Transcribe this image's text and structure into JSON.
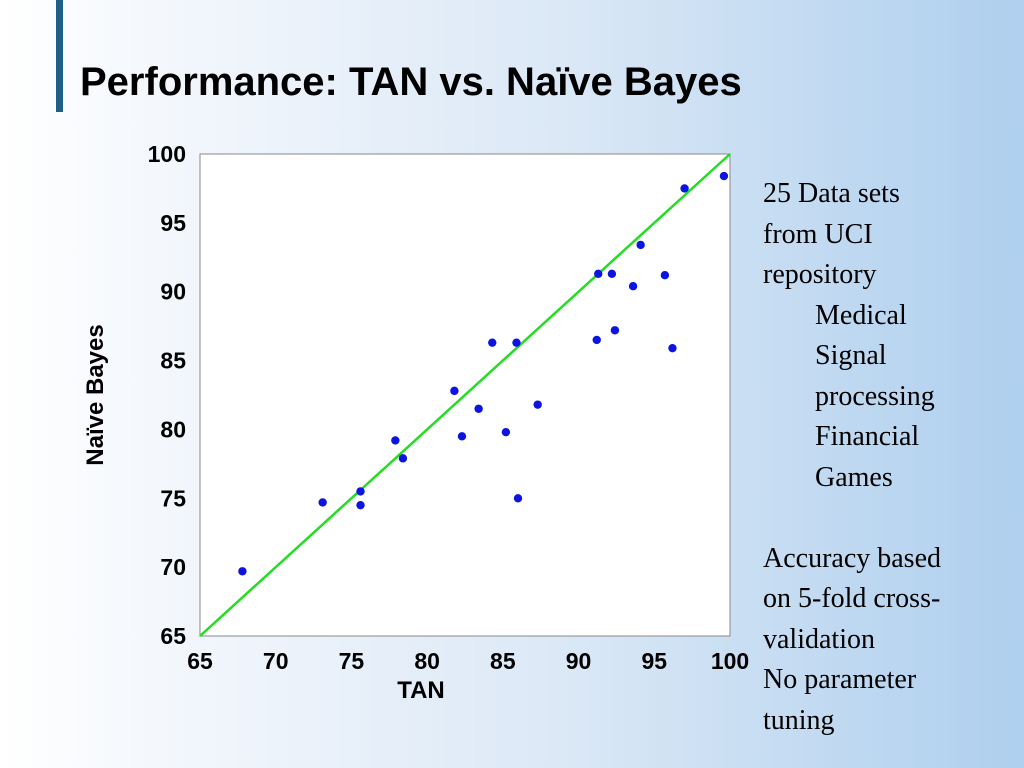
{
  "slide": {
    "title": "Performance: TAN vs. Naïve Bayes"
  },
  "notes": {
    "intro": [
      "25 Data sets",
      "from UCI",
      "repository"
    ],
    "domains": [
      "Medical",
      "Signal",
      "processing",
      "Financial",
      "Games"
    ],
    "accuracy": [
      "Accuracy based",
      "on 5-fold cross-",
      "validation"
    ],
    "tuning": [
      "No parameter",
      "tuning"
    ]
  },
  "chart_data": {
    "type": "scatter",
    "title": "",
    "xlabel": "TAN",
    "ylabel": "Naïve Bayes",
    "xlim": [
      65,
      100
    ],
    "ylim": [
      65,
      100
    ],
    "xticks": [
      65,
      70,
      75,
      80,
      85,
      90,
      95,
      100
    ],
    "yticks": [
      65,
      70,
      75,
      80,
      85,
      90,
      95,
      100
    ],
    "grid": false,
    "reference_line": {
      "from": [
        65,
        65
      ],
      "to": [
        100,
        100
      ],
      "color": "#22dd22"
    },
    "point_color": "#0b14e0",
    "series": [
      {
        "points": [
          [
            67.8,
            69.7
          ],
          [
            73.1,
            74.7
          ],
          [
            75.6,
            75.5
          ],
          [
            75.6,
            74.5
          ],
          [
            77.9,
            79.2
          ],
          [
            78.4,
            77.9
          ],
          [
            81.8,
            82.8
          ],
          [
            82.3,
            79.5
          ],
          [
            83.4,
            81.5
          ],
          [
            84.3,
            86.3
          ],
          [
            85.2,
            79.8
          ],
          [
            85.9,
            86.3
          ],
          [
            86.0,
            75.0
          ],
          [
            87.3,
            81.8
          ],
          [
            91.2,
            86.5
          ],
          [
            91.3,
            91.3
          ],
          [
            92.2,
            91.3
          ],
          [
            92.4,
            87.2
          ],
          [
            93.6,
            90.4
          ],
          [
            94.1,
            93.4
          ],
          [
            95.7,
            91.2
          ],
          [
            96.2,
            85.9
          ],
          [
            97.0,
            97.5
          ],
          [
            99.6,
            98.4
          ]
        ]
      }
    ]
  }
}
